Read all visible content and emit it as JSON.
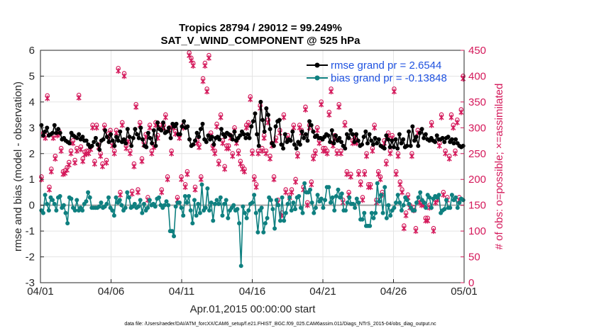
{
  "chart_data": {
    "type": "line",
    "title_line1": "Tropics 28794 / 29012 = 99.249%",
    "title_line2": "SAT_V_WIND_COMPONENT @ 525 hPa",
    "xlabel": "Apr.01,2015 00:00:00 start",
    "ylabel_left": "rmse and bias (model - observation)",
    "ylabel_right": "# of obs: o=possible; ×=assimilated",
    "x_ticks": [
      "04/01",
      "04/06",
      "04/11",
      "04/16",
      "04/21",
      "04/26",
      "05/01"
    ],
    "y_left_ticks": [
      "6",
      "5",
      "4",
      "3",
      "2",
      "1",
      "0",
      "-1",
      "-2",
      "-3"
    ],
    "y_right_ticks": [
      "450",
      "400",
      "350",
      "300",
      "250",
      "200",
      "150",
      "100",
      "50",
      "0"
    ],
    "ylim_left": [
      -3,
      6
    ],
    "ylim_right": [
      0,
      450
    ],
    "xlim": [
      0,
      30
    ],
    "grid": true,
    "legend_position": "top-right",
    "colors": {
      "rmse": "#000000",
      "bias": "#0f8080",
      "obs": "#d4185a",
      "zero_line": "#a6a6a6",
      "grid": "#e4e4e4",
      "legend_text": "#1f52e0"
    },
    "series": [
      {
        "name": "rmse grand pr = 2.6544",
        "color": "#000000",
        "axis": "left",
        "values": [
          3.1,
          2.7,
          2.85,
          3.0,
          2.7,
          2.75,
          2.8,
          3.1,
          2.8,
          2.95,
          2.8,
          2.55,
          2.6,
          2.5,
          2.45,
          2.4,
          2.8,
          2.7,
          2.65,
          2.6,
          2.75,
          2.55,
          2.65,
          2.5,
          2.5,
          2.35,
          2.25,
          2.3,
          2.45,
          2.6,
          2.35,
          2.15,
          2.5,
          2.55,
          2.9,
          2.65,
          2.45,
          2.75,
          2.5,
          2.3,
          2.65,
          2.5,
          2.85,
          2.45,
          2.55,
          2.4,
          2.95,
          2.65,
          2.3,
          2.6,
          2.95,
          2.75,
          2.6,
          3.0,
          2.55,
          2.3,
          2.25,
          2.8,
          2.6,
          2.4,
          2.9,
          2.3,
          3.2,
          2.95,
          2.9,
          3.2,
          2.8,
          2.85,
          3.0,
          2.6,
          3.15,
          3.05,
          3.15,
          2.75,
          2.75,
          3.05,
          3.25,
          3.0,
          3.05,
          2.55,
          2.3,
          2.35,
          2.5,
          2.8,
          2.65,
          2.95,
          3.15,
          2.55,
          2.45,
          2.7,
          2.55,
          2.65,
          2.35,
          2.6,
          2.65,
          2.55,
          2.95,
          2.75,
          2.65,
          2.8,
          2.75,
          2.7,
          2.55,
          2.85,
          2.5,
          2.6,
          2.7,
          2.85,
          2.75,
          2.6,
          2.75,
          2.6,
          3.05,
          3.25,
          3.55,
          2.75,
          2.3,
          4.0,
          3.3,
          2.85,
          3.75,
          3.5,
          2.95,
          2.4,
          2.3,
          3.05,
          3.25,
          3.3,
          2.35,
          2.2,
          2.75,
          2.45,
          2.55,
          2.5,
          2.85,
          2.35,
          2.2,
          2.45,
          2.35,
          2.85,
          2.6,
          2.75,
          2.5,
          3.25,
          3.1,
          2.85,
          2.65,
          2.7,
          2.6,
          2.6,
          2.55,
          2.65,
          2.75,
          2.7,
          2.45,
          2.9,
          2.4,
          2.7,
          2.5,
          2.6,
          2.45,
          2.3,
          2.2,
          2.75,
          2.6,
          2.9,
          2.75,
          2.45,
          2.75,
          2.5,
          2.3,
          2.35,
          2.65,
          2.85,
          2.4,
          2.75,
          2.5,
          2.35,
          2.6,
          2.4,
          2.55,
          2.3,
          2.25,
          2.2,
          2.7,
          2.55,
          2.25,
          2.5,
          2.25,
          2.55,
          2.2,
          2.75,
          2.4,
          2.55,
          2.25,
          2.3,
          2.85,
          2.3,
          3.05,
          2.5,
          2.65,
          2.3,
          2.8,
          2.95,
          2.6,
          2.75,
          2.55,
          2.5,
          2.6,
          2.5,
          2.45,
          2.7,
          2.55,
          2.55,
          2.6,
          2.45,
          2.6,
          2.65,
          2.45,
          2.55,
          2.4,
          2.55,
          2.4,
          2.3,
          2.25,
          2.3
        ]
      },
      {
        "name": "bias grand pr = -0.13848",
        "color": "#0f8080",
        "axis": "left",
        "values": [
          -0.2,
          -0.3,
          0.4,
          0.05,
          -0.2,
          0.3,
          0.2,
          0.05,
          -0.2,
          0.3,
          0.35,
          -0.1,
          0.0,
          -0.3,
          -0.7,
          0.3,
          0.25,
          -0.1,
          -0.2,
          0.2,
          -0.2,
          -0.1,
          -0.2,
          0.05,
          0.15,
          0.5,
          0.3,
          -0.1,
          -0.1,
          -0.1,
          -0.1,
          -0.05,
          0.1,
          -0.1,
          -0.05,
          0.05,
          0.3,
          -0.1,
          -0.2,
          -0.4,
          0.3,
          0.1,
          0.2,
          0.0,
          -0.2,
          -0.1,
          0.5,
          0.3,
          -0.1,
          -0.05,
          0.05,
          -0.1,
          -0.05,
          0.2,
          -0.3,
          0.05,
          -0.2,
          -0.1,
          0.2,
          0.0,
          0.05,
          -0.05,
          0.25,
          0.3,
          0.0,
          -0.1,
          0.0,
          0.15,
          0.0,
          -1.0,
          -1.0,
          -1.2,
          -0.05,
          0.1,
          0.1,
          -0.1,
          -0.4,
          0.35,
          0.1,
          0.35,
          -0.2,
          -0.7,
          0.2,
          -0.4,
          0.05,
          -0.3,
          0.8,
          -0.2,
          -0.1,
          0.65,
          -0.2,
          0.1,
          -0.6,
          0.05,
          0.2,
          0.05,
          0.3,
          -0.4,
          0.05,
          0.2,
          -0.5,
          -0.2,
          -0.1,
          0.0,
          -0.2,
          -0.15,
          -0.7,
          -2.35,
          -0.05,
          -0.3,
          -0.5,
          -0.2,
          0.05,
          0.1,
          0.4,
          -0.3,
          -1.05,
          -0.2,
          -0.1,
          -1.05,
          -0.7,
          -0.5,
          0.3,
          0.2,
          -0.15,
          -0.9,
          0.2,
          0.0,
          -0.6,
          0.3,
          -0.6,
          -0.3,
          0.05,
          0.3,
          -0.2,
          0.1,
          -0.15,
          0.3,
          0.35,
          -0.1,
          -0.3,
          0.85,
          0.5,
          0.5,
          0.6,
          0.1,
          -0.3,
          -0.1,
          0.4,
          0.15,
          0.25,
          -0.1,
          0.2,
          0.7,
          0.7,
          0.1,
          0.3,
          -0.2,
          0.35,
          0.6,
          0.3,
          0.45,
          -0.2,
          -0.2,
          0.1,
          0.3,
          0.05,
          0.05,
          -0.1,
          0.25,
          0.1,
          -0.55,
          -0.55,
          -0.3,
          -0.8,
          -0.8,
          -0.8,
          -0.3,
          -0.5,
          -0.3,
          0.85,
          0.15,
          0.4,
          -0.3,
          0.7,
          -0.5,
          0.0,
          -0.4,
          -0.2,
          -0.1,
          0.1,
          0.4,
          0.1,
          -0.2,
          0.0,
          0.3,
          0.2,
          0.05,
          -0.1,
          -0.2,
          -0.2,
          0.1,
          0.3,
          0.5,
          0.2,
          0.1,
          -0.1,
          0.4,
          0.3,
          -0.1,
          0.25,
          0.35,
          0.3,
          0.4,
          -0.3,
          -0.2,
          -0.15,
          0.2,
          -0.1,
          -0.1,
          0.4,
          0.2,
          0.3,
          -0.1,
          0.1,
          0.25,
          0.2
        ]
      },
      {
        "name": "# of obs",
        "color": "#d4185a",
        "axis": "right",
        "marker": "o and ×",
        "values": [
          200,
          285,
          280,
          357,
          180,
          215,
          280,
          240,
          285,
          288,
          255,
          210,
          212,
          218,
          228,
          250,
          270,
          232,
          255,
          358,
          258,
          235,
          248,
          250,
          250,
          258,
          300,
          230,
          300,
          262,
          245,
          225,
          300,
          232,
          283,
          290,
          265,
          250,
          290,
          410,
          170,
          305,
          400,
          260,
          273,
          250,
          172,
          225,
          340,
          175,
          305,
          235,
          267,
          282,
          160,
          300,
          250,
          262,
          305,
          280,
          300,
          175,
          300,
          320,
          200,
          295,
          250,
          300,
          288,
          160,
          280,
          200,
          300,
          185,
          210,
          440,
          430,
          420,
          180,
          270,
          262,
          200,
          390,
          420,
          370,
          435,
          285,
          260,
          250,
          302,
          230,
          320,
          270,
          220,
          260,
          260,
          280,
          245,
          295,
          270,
          250,
          230,
          220,
          215,
          300,
          305,
          355,
          250,
          200,
          185,
          250,
          338,
          255,
          280,
          250,
          310,
          240,
          265,
          200,
          275,
          155,
          290,
          130,
          320,
          175,
          280,
          165,
          175,
          300,
          195,
          245,
          300,
          290,
          180,
          335,
          150,
          300,
          190,
          240,
          250,
          295,
          270,
          345,
          255,
          255,
          250,
          325,
          370,
          265,
          280,
          250,
          340,
          250,
          155,
          305,
          210,
          170,
          205,
          270,
          280,
          270,
          210,
          190,
          160,
          210,
          245,
          185,
          185,
          255,
          300,
          155,
          210,
          200,
          170,
          270,
          230,
          285,
          250,
          280,
          370,
          210,
          245,
          190,
          175,
          105,
          130,
          165,
          145,
          245,
          140,
          100,
          290,
          155,
          150,
          150,
          120,
          120,
          145,
          305,
          100,
          155,
          160,
          265,
          320,
          170,
          250,
          160,
          240,
          320,
          300,
          250,
          310,
          160,
          330,
          395
        ]
      }
    ]
  },
  "footer": {
    "data_file": "data file: /Users/raeder/DAI/ATM_forcXX/CAM6_setup/f.e21.FHIST_BGC.f09_025.CAM6assim.011/Diags_NTrS_2015-04/obs_diag_output.nc"
  }
}
